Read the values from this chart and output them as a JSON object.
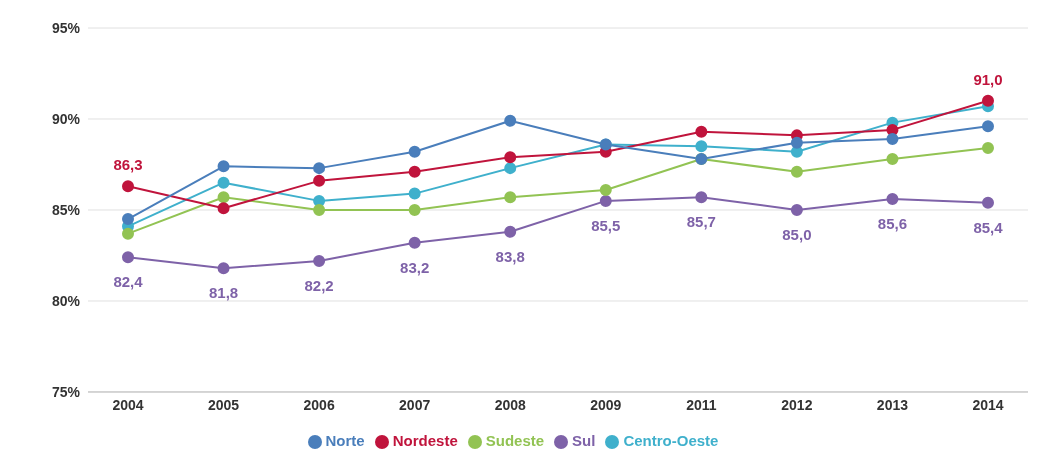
{
  "chart_data": {
    "type": "line",
    "categories": [
      "2004",
      "2005",
      "2006",
      "2007",
      "2008",
      "2009",
      "2011",
      "2012",
      "2013",
      "2014"
    ],
    "series": [
      {
        "name": "Norte",
        "color": "#4a7ebb",
        "values": [
          84.5,
          87.4,
          87.3,
          88.2,
          89.9,
          88.6,
          87.8,
          88.7,
          88.9,
          89.6
        ]
      },
      {
        "name": "Nordeste",
        "color": "#c0143c",
        "values": [
          86.3,
          85.1,
          86.6,
          87.1,
          87.9,
          88.2,
          89.3,
          89.1,
          89.4,
          91.0
        ],
        "value_labels": [
          "86,3",
          null,
          null,
          null,
          null,
          null,
          null,
          null,
          null,
          "91,0"
        ]
      },
      {
        "name": "Sudeste",
        "color": "#92c353",
        "values": [
          83.7,
          85.7,
          85.0,
          85.0,
          85.7,
          86.1,
          87.8,
          87.1,
          87.8,
          88.4
        ]
      },
      {
        "name": "Sul",
        "color": "#7e62a8",
        "values": [
          82.4,
          81.8,
          82.2,
          83.2,
          83.8,
          85.5,
          85.7,
          85.0,
          85.6,
          85.4
        ],
        "value_labels": [
          "82,4",
          "81,8",
          "82,2",
          "83,2",
          "83,8",
          "85,5",
          "85,7",
          "85,0",
          "85,6",
          "85,4"
        ]
      },
      {
        "name": "Centro-Oeste",
        "color": "#3fb0cc",
        "values": [
          84.1,
          86.5,
          85.5,
          85.9,
          87.3,
          88.6,
          88.5,
          88.2,
          89.8,
          90.7
        ]
      }
    ],
    "ylim": [
      75,
      95
    ],
    "yticks": [
      {
        "value": 75,
        "label": "75%"
      },
      {
        "value": 80,
        "label": "80%"
      },
      {
        "value": 85,
        "label": "85%"
      },
      {
        "value": 90,
        "label": "90%"
      },
      {
        "value": 95,
        "label": "95%"
      }
    ],
    "grid": "y",
    "legend": "bottom",
    "marker": "circle",
    "line_style": "solid"
  }
}
